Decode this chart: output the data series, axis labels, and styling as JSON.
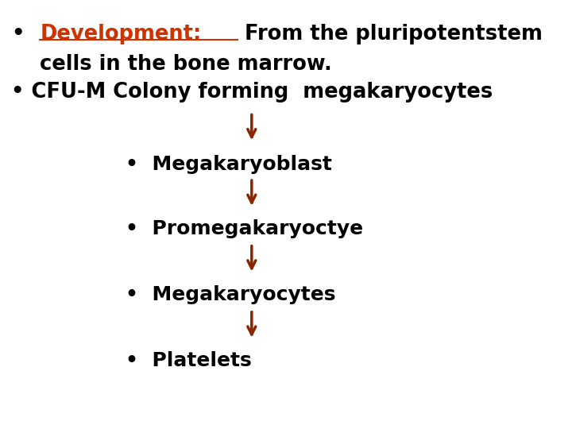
{
  "background_color": "#ffffff",
  "text_color": "#000000",
  "arrow_color": "#8B2500",
  "development_color": "#CC3300",
  "steps": [
    "•  Megakaryoblast",
    "•  Promegakaryoctye",
    "•  Megakaryocytes",
    "•  Platelets"
  ],
  "figsize": [
    7.2,
    5.4
  ],
  "dpi": 100
}
